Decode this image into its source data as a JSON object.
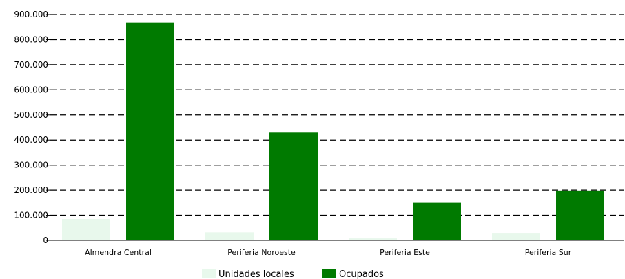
{
  "chart_data": {
    "type": "bar",
    "categories": [
      "Almendra Central",
      "Periferia Noroeste",
      "Periferia Este",
      "Periferia Sur"
    ],
    "series": [
      {
        "name": "Unidades locales",
        "color": "#e8f8ec",
        "values": [
          85000,
          32000,
          8000,
          30000
        ]
      },
      {
        "name": "Ocupados",
        "color": "#007a00",
        "values": [
          868000,
          430000,
          152000,
          198000
        ]
      }
    ],
    "ylim": [
      0,
      900000
    ],
    "yticks": [
      0,
      100000,
      200000,
      300000,
      400000,
      500000,
      600000,
      700000,
      800000,
      900000
    ],
    "ytick_labels": [
      "0",
      "100.000",
      "200.000",
      "300.000",
      "400.000",
      "500.000",
      "600.000",
      "700.000",
      "800.000",
      "900.000"
    ],
    "grid": true,
    "legend_position": "bottom"
  }
}
